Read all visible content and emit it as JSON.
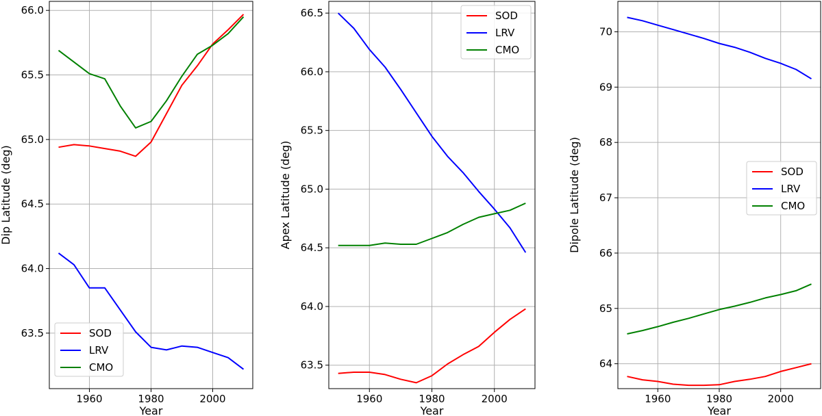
{
  "chart_data": [
    {
      "type": "line",
      "title": "",
      "xlabel": "Year",
      "ylabel": "Dip Latitude (deg)",
      "xlim": [
        1947,
        2013
      ],
      "ylim": [
        63.07,
        66.07
      ],
      "xticks": [
        1960,
        1980,
        2000
      ],
      "yticks": [
        63.5,
        64.0,
        64.5,
        65.0,
        65.5,
        66.0
      ],
      "ytick_labels": [
        "63.5",
        "64.0",
        "64.5",
        "65.0",
        "65.5",
        "66.0"
      ],
      "grid": true,
      "legend_position": "lower-left",
      "x": [
        1950,
        1955,
        1960,
        1965,
        1970,
        1975,
        1980,
        1985,
        1990,
        1995,
        2000,
        2005,
        2010
      ],
      "series": [
        {
          "name": "SOD",
          "color": "#ff0000",
          "values": [
            64.94,
            64.96,
            64.95,
            64.93,
            64.91,
            64.87,
            64.98,
            65.2,
            65.42,
            65.57,
            65.74,
            65.85,
            65.97
          ]
        },
        {
          "name": "LRV",
          "color": "#0000ff",
          "values": [
            64.12,
            64.03,
            63.85,
            63.85,
            63.68,
            63.51,
            63.39,
            63.37,
            63.4,
            63.39,
            63.35,
            63.31,
            63.22
          ]
        },
        {
          "name": "CMO",
          "color": "#008000",
          "values": [
            65.69,
            65.6,
            65.51,
            65.47,
            65.26,
            65.09,
            65.14,
            65.3,
            65.49,
            65.66,
            65.73,
            65.82,
            65.95
          ]
        }
      ]
    },
    {
      "type": "line",
      "title": "",
      "xlabel": "Year",
      "ylabel": "Apex Latitude (deg)",
      "xlim": [
        1947,
        2013
      ],
      "ylim": [
        63.3,
        66.6
      ],
      "xticks": [
        1960,
        1980,
        2000
      ],
      "yticks": [
        63.5,
        64.0,
        64.5,
        65.0,
        65.5,
        66.0,
        66.5
      ],
      "ytick_labels": [
        "63.5",
        "64.0",
        "64.5",
        "65.0",
        "65.5",
        "66.0",
        "66.5"
      ],
      "grid": true,
      "legend_position": "top-right",
      "x": [
        1950,
        1955,
        1960,
        1965,
        1970,
        1975,
        1980,
        1985,
        1990,
        1995,
        2000,
        2005,
        2010
      ],
      "series": [
        {
          "name": "SOD",
          "color": "#ff0000",
          "values": [
            63.43,
            63.44,
            63.44,
            63.42,
            63.38,
            63.35,
            63.41,
            63.51,
            63.59,
            63.66,
            63.78,
            63.89,
            63.98
          ]
        },
        {
          "name": "LRV",
          "color": "#0000ff",
          "values": [
            66.5,
            66.37,
            66.19,
            66.04,
            65.85,
            65.65,
            65.45,
            65.28,
            65.14,
            64.98,
            64.83,
            64.67,
            64.46
          ]
        },
        {
          "name": "CMO",
          "color": "#008000",
          "values": [
            64.52,
            64.52,
            64.52,
            64.54,
            64.53,
            64.53,
            64.58,
            64.63,
            64.7,
            64.76,
            64.79,
            64.82,
            64.88
          ]
        }
      ]
    },
    {
      "type": "line",
      "title": "",
      "xlabel": "Year",
      "ylabel": "Dipole Latitude (deg)",
      "xlim": [
        1947,
        2013
      ],
      "ylim": [
        63.55,
        70.55
      ],
      "xticks": [
        1960,
        1980,
        2000
      ],
      "yticks": [
        64,
        65,
        66,
        67,
        68,
        69,
        70
      ],
      "ytick_labels": [
        "64",
        "65",
        "66",
        "67",
        "68",
        "69",
        "70"
      ],
      "grid": true,
      "legend_position": "center-right",
      "x": [
        1950,
        1955,
        1960,
        1965,
        1970,
        1975,
        1980,
        1985,
        1990,
        1995,
        2000,
        2005,
        2010
      ],
      "series": [
        {
          "name": "SOD",
          "color": "#ff0000",
          "values": [
            63.77,
            63.71,
            63.68,
            63.63,
            63.61,
            63.61,
            63.62,
            63.68,
            63.72,
            63.77,
            63.86,
            63.93,
            64.0
          ]
        },
        {
          "name": "LRV",
          "color": "#0000ff",
          "values": [
            70.26,
            70.2,
            70.12,
            70.04,
            69.96,
            69.88,
            69.79,
            69.72,
            69.63,
            69.52,
            69.43,
            69.32,
            69.15
          ]
        },
        {
          "name": "CMO",
          "color": "#008000",
          "values": [
            64.54,
            64.6,
            64.67,
            64.75,
            64.82,
            64.9,
            64.98,
            65.04,
            65.11,
            65.19,
            65.25,
            65.32,
            65.44
          ]
        }
      ]
    }
  ]
}
